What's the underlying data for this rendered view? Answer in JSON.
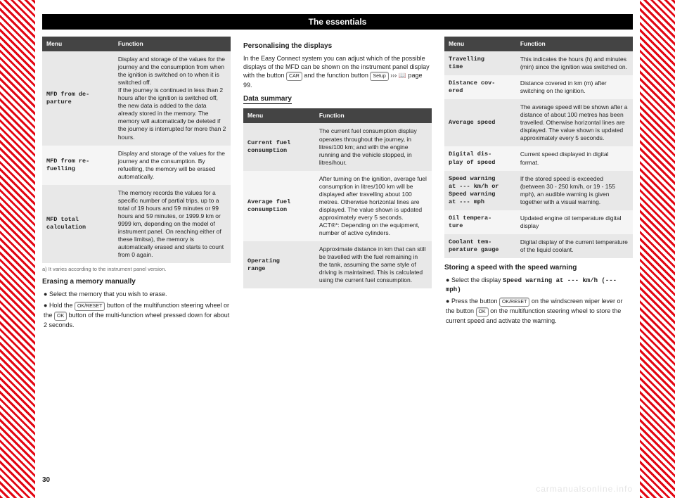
{
  "header": "The essentials",
  "pageNumber": "30",
  "watermark": "carmanualsonline.info",
  "col1": {
    "tableHeaders": {
      "menu": "Menu",
      "function": "Function"
    },
    "rows": [
      {
        "key": "MFD from de-\nparture",
        "val": "Display and storage of the values for the journey and the consumption from when the ignition is switched on to when it is switched off.\nIf the journey is continued in less than 2 hours after the ignition is switched off, the new data is added to the data already stored in the memory. The memory will automatically be deleted if the journey is interrupted for more than 2 hours."
      },
      {
        "key": "MFD from re-\nfuelling",
        "val": "Display and storage of the values for the journey and the consumption. By refuelling, the memory will be erased automatically."
      },
      {
        "key": "MFD total\ncalculation",
        "val": "The memory records the values for a specific number of partial trips, up to a total of 19 hours and 59 minutes or 99 hours and 59 minutes, or 1999.9 km or 9999 km, depending on the model of instrument panel. On reaching either of these limitsa), the memory is automatically erased and starts to count from 0 again."
      }
    ],
    "footnote": "a)  It varies according to the instrument panel version.",
    "erasingHead": "Erasing a memory manually",
    "erasing1": "Select the memory that you wish to erase.",
    "erasing2_pre": "Hold the ",
    "erasing2_btn1": "OK/RESET",
    "erasing2_mid": " button of the multifunction steering wheel or the ",
    "erasing2_btn2": "OK",
    "erasing2_post": " button of the multi-function wheel pressed down for about 2 seconds."
  },
  "col2": {
    "personalHead": "Personalising the displays",
    "personal_p1_pre": "In the Easy Connect system you can adjust which of the possible displays of the MFD can be shown on the instrument panel display with the button ",
    "personal_btn1": "CAR",
    "personal_mid": " and the function button ",
    "personal_btn2": "Setup",
    "personal_post": " ››› 📖 page 99.",
    "dataHead": "Data summary",
    "tableHeaders": {
      "menu": "Menu",
      "function": "Function"
    },
    "rows": [
      {
        "key": "Current fuel\nconsumption",
        "val": "The current fuel consumption display operates throughout the journey, in litres/100 km; and with the engine running and the vehicle stopped, in litres/hour."
      },
      {
        "key": "Average fuel\nconsumption",
        "val": "After turning on the ignition, average fuel consumption in litres/100 km will be displayed after travelling about 100 metres. Otherwise horizontal lines are displayed. The value shown is updated approximately every 5 seconds.\nACT®*: Depending on the equipment, number of active cylinders."
      },
      {
        "key": "Operating\nrange",
        "val": "Approximate distance in km that can still be travelled with the fuel remaining in the tank, assuming the same style of driving is maintained. This is calculated using the current fuel consumption."
      }
    ]
  },
  "col3": {
    "tableHeaders": {
      "menu": "Menu",
      "function": "Function"
    },
    "rows": [
      {
        "key": "Travelling\ntime",
        "val": "This indicates the hours (h) and minutes (min) since the ignition was switched on."
      },
      {
        "key": "Distance cov-\nered",
        "val": "Distance covered in km (m) after switching on the ignition."
      },
      {
        "key": "Average speed",
        "val": "The average speed will be shown after a distance of about 100 metres has been travelled. Otherwise horizontal lines are displayed. The value shown is updated approximately every 5 seconds."
      },
      {
        "key": "Digital dis-\nplay of speed",
        "val": "Current speed displayed in digital format."
      },
      {
        "key": "Speed warning\nat --- km/h or\nSpeed warning\nat --- mph",
        "val": "If the stored speed is exceeded (between 30 - 250 km/h, or 19 - 155 mph), an audible warning is given together with a visual warning."
      },
      {
        "key": "Oil tempera-\nture",
        "val": "Updated engine oil temperature digital display"
      },
      {
        "key": "Coolant tem-\nperature gauge",
        "val": "Digital display of the current temperature of the liquid coolant."
      }
    ],
    "storingHead": "Storing a speed with the speed warning",
    "storing1_pre": "Select the display ",
    "storing1_mono": "Speed warning at --- km/h (--- mph)",
    "storing2_pre": "Press the button ",
    "storing2_btn1": "OK/RESET",
    "storing2_mid": " on the windscreen wiper lever or the button ",
    "storing2_btn2": "OK",
    "storing2_post": " on the multifunction steering wheel to store the current speed and activate the warning."
  }
}
